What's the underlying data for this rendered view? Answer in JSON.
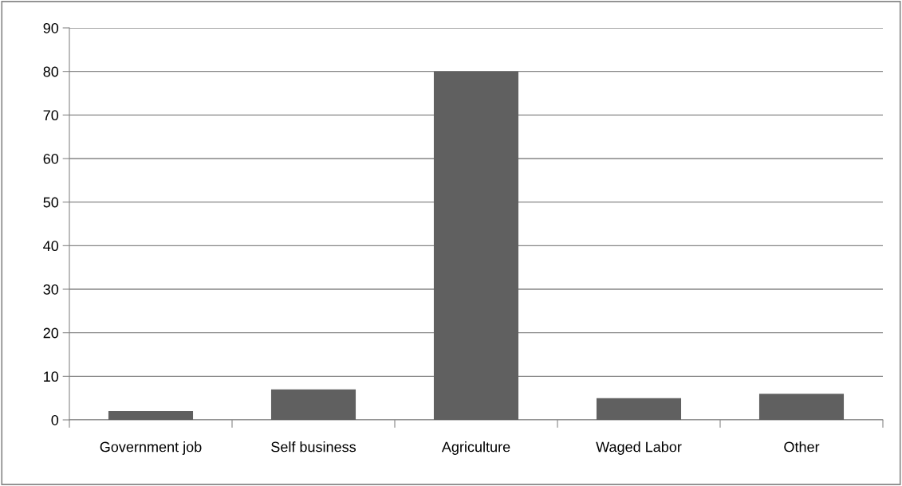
{
  "chart_data": {
    "type": "bar",
    "categories": [
      "Government job",
      "Self business",
      "Agriculture",
      "Waged Labor",
      "Other"
    ],
    "values": [
      2,
      7,
      80,
      5,
      6
    ],
    "color": "#606060",
    "ylim": [
      0,
      90
    ],
    "yticks": [
      0,
      10,
      20,
      30,
      40,
      50,
      60,
      70,
      80,
      90
    ],
    "grid": "y",
    "legend": false
  }
}
